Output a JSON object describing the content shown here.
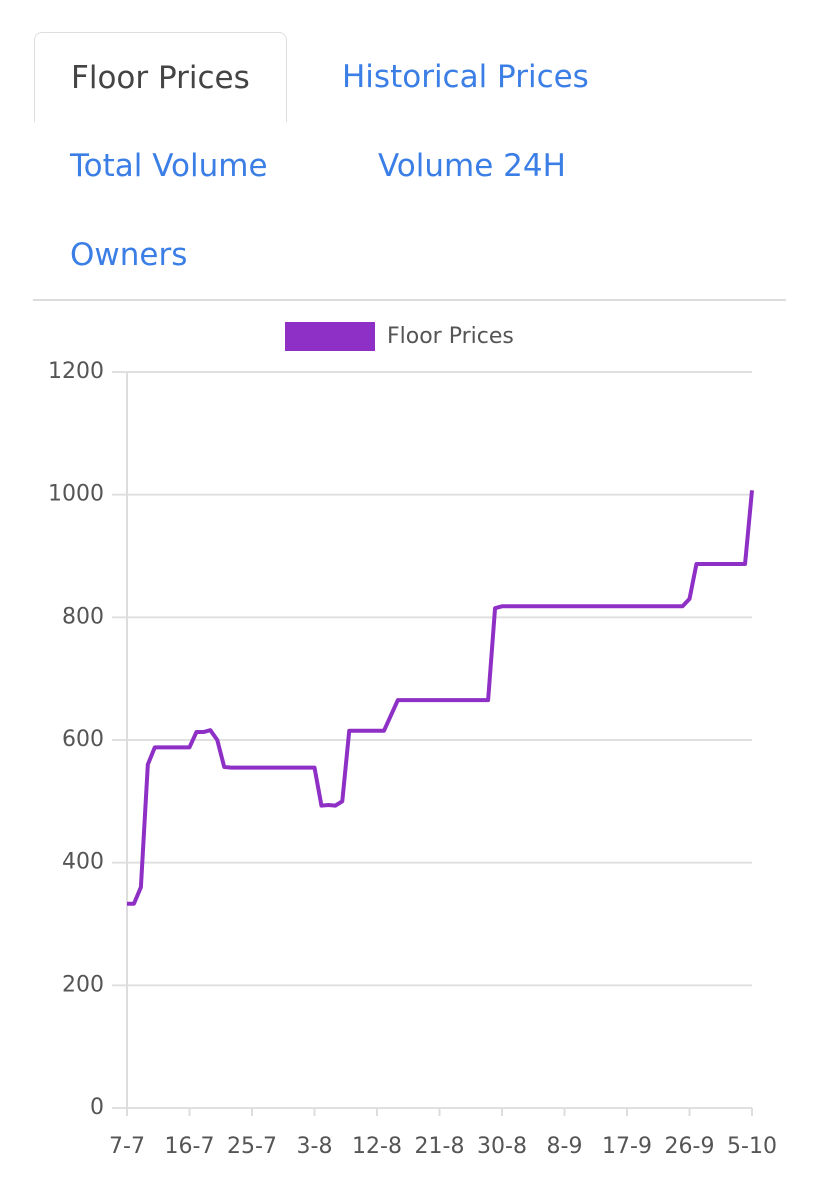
{
  "tabs": [
    "Floor Prices",
    "Historical Prices",
    "Total Volume",
    "Volume 24H",
    "Owners"
  ],
  "active_tab": 0,
  "chart_data": {
    "type": "line",
    "categories": [
      "7-7",
      null,
      null,
      null,
      null,
      null,
      null,
      null,
      null,
      "16-7",
      null,
      null,
      null,
      null,
      null,
      null,
      null,
      null,
      "25-7",
      null,
      null,
      null,
      null,
      null,
      null,
      null,
      null,
      "3-8",
      null,
      null,
      null,
      null,
      null,
      null,
      null,
      null,
      "12-8",
      null,
      null,
      null,
      null,
      null,
      null,
      null,
      null,
      "21-8",
      null,
      null,
      null,
      null,
      null,
      null,
      null,
      null,
      "30-8",
      null,
      null,
      null,
      null,
      null,
      null,
      null,
      null,
      "8-9",
      null,
      null,
      null,
      null,
      null,
      null,
      null,
      null,
      "17-9",
      null,
      null,
      null,
      null,
      null,
      null,
      null,
      null,
      "26-9",
      null,
      null,
      null,
      null,
      null,
      null,
      null,
      null,
      "5-10"
    ],
    "series": [
      {
        "name": "Floor Prices",
        "color": "#8e2fc6",
        "values": [
          333,
          333,
          360,
          560,
          588,
          588,
          588,
          588,
          588,
          588,
          613,
          613,
          616,
          600,
          556,
          555,
          555,
          555,
          555,
          555,
          555,
          555,
          555,
          555,
          555,
          555,
          555,
          555,
          493,
          494,
          493,
          500,
          615,
          615,
          615,
          615,
          615,
          615,
          640,
          665,
          665,
          665,
          665,
          665,
          665,
          665,
          665,
          665,
          665,
          665,
          665,
          665,
          665,
          815,
          818,
          818,
          818,
          818,
          818,
          818,
          818,
          818,
          818,
          818,
          818,
          818,
          818,
          818,
          818,
          818,
          818,
          818,
          818,
          818,
          818,
          818,
          818,
          818,
          818,
          818,
          818,
          830,
          887,
          887,
          887,
          887,
          887,
          887,
          887,
          887,
          1007
        ]
      }
    ],
    "ylim": [
      0,
      1200
    ],
    "yticks": [
      0,
      200,
      400,
      600,
      800,
      1000,
      1200
    ],
    "grid": true,
    "legend": "top"
  }
}
